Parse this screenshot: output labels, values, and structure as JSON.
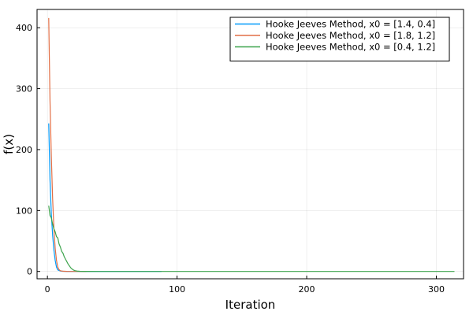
{
  "chart_data": {
    "type": "line",
    "title": "",
    "xlabel": "Iteration",
    "ylabel": "f(x)",
    "xlim": [
      -8,
      321
    ],
    "ylim": [
      -12,
      430
    ],
    "xticks": [
      0,
      100,
      200,
      300
    ],
    "yticks": [
      0,
      100,
      200,
      300,
      400
    ],
    "grid": true,
    "legend_position": "top-right",
    "series": [
      {
        "name": "Hooke Jeeves Method, x0 = [1.4, 0.4]",
        "color": "#009AFA",
        "x": [
          1,
          2,
          3,
          4,
          5,
          6,
          7,
          8,
          10,
          12,
          15,
          20,
          30,
          50,
          88
        ],
        "y": [
          243,
          150,
          95,
          60,
          35,
          18,
          7,
          2.5,
          0.8,
          0.3,
          0.1,
          0.05,
          0.02,
          0.01,
          0
        ]
      },
      {
        "name": "Hooke Jeeves Method, x0 = [1.8, 1.2]",
        "color": "#E26F46",
        "x": [
          1,
          2,
          3,
          4,
          5,
          6,
          7,
          8,
          9,
          10,
          12,
          15,
          20,
          30
        ],
        "y": [
          416,
          280,
          190,
          120,
          70,
          38,
          18,
          7,
          3,
          1.2,
          0.4,
          0.1,
          0.05,
          0
        ]
      },
      {
        "name": "Hooke Jeeves Method, x0 = [0.4, 1.2]",
        "color": "#3DA44D",
        "x": [
          1,
          2,
          3,
          4,
          5,
          6,
          7,
          8,
          9,
          10,
          11,
          12,
          13,
          14,
          15,
          16,
          17,
          18,
          19,
          20,
          21,
          22,
          23,
          25,
          28,
          32,
          40,
          60,
          100,
          150,
          200,
          250,
          314
        ],
        "y": [
          108,
          92,
          88,
          78,
          70,
          65,
          57,
          55,
          45,
          40,
          33,
          30,
          24,
          20,
          16,
          12,
          9,
          6,
          4,
          2.5,
          1.5,
          1,
          0.6,
          0.3,
          0.15,
          0.08,
          0.04,
          0.02,
          0.01,
          0.01,
          0,
          0,
          0
        ]
      }
    ]
  }
}
